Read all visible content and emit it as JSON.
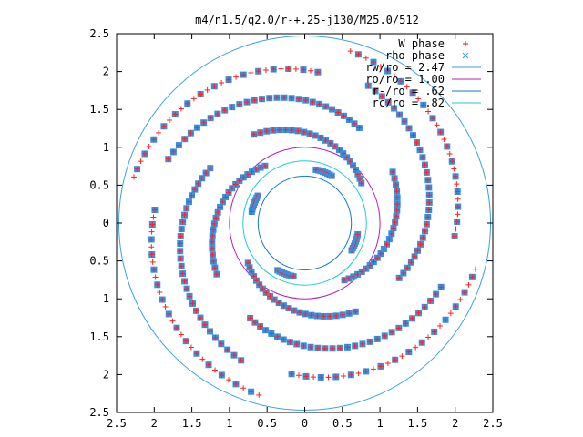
{
  "chart_data": {
    "type": "scatter",
    "title": "m4/n1.5/q2.0/r-+.25-j130/M25.0/512",
    "xlabel": "",
    "ylabel": "",
    "xlim": [
      -2.5,
      2.5
    ],
    "ylim": [
      -2.5,
      2.5
    ],
    "x_tick_labels": [
      "2.5",
      "2",
      "1.5",
      "1",
      "0.5",
      "0",
      "0.5",
      "1",
      "1.5",
      "2",
      "2.5"
    ],
    "y_tick_labels": [
      "2.5",
      "2",
      "1.5",
      "1",
      "0.5",
      "0",
      "0.5",
      "1",
      "1.5",
      "2",
      "2.5"
    ],
    "x_ticks": [
      -2.5,
      -2,
      -1.5,
      -1,
      -0.5,
      0,
      0.5,
      1,
      1.5,
      2,
      2.5
    ],
    "y_ticks": [
      2.5,
      2,
      1.5,
      1,
      0.5,
      0,
      -0.5,
      -1,
      -1.5,
      -2,
      -2.5
    ],
    "grid": false,
    "legend_position": "top-right",
    "legend": [
      {
        "label": "W phase",
        "symbol": "plus",
        "color": "#ff0000"
      },
      {
        "label": "rho phase",
        "symbol": "cross",
        "color": "#3a9ee8"
      },
      {
        "label": "rw/ro = 2.47",
        "symbol": "line",
        "color": "#3a9ee8"
      },
      {
        "label": "ro/ro = 1.00",
        "symbol": "line",
        "color": "#b020b0"
      },
      {
        "label": "r-/ro = .62",
        "symbol": "line",
        "color": "#1a78c8"
      },
      {
        "label": "rc/ro = .82",
        "symbol": "line",
        "color": "#20c8d8"
      }
    ],
    "circles": [
      {
        "name": "rw",
        "r": 2.47,
        "color": "#3a9ee8"
      },
      {
        "name": "ro",
        "r": 1.0,
        "color": "#b020b0"
      },
      {
        "name": "rminus",
        "r": 0.62,
        "color": "#1a78c8"
      },
      {
        "name": "rc",
        "r": 0.82,
        "color": "#20c8d8"
      }
    ],
    "spiral_arms": [
      {
        "name": "inner-arm-1",
        "r_start": 0.92,
        "r_end": 1.35,
        "theta_start_deg": 125,
        "theta_span_deg": 85,
        "points": 24
      },
      {
        "name": "inner-arm-2",
        "r_start": 0.92,
        "r_end": 1.35,
        "theta_start_deg": 35,
        "theta_span_deg": 85,
        "points": 24
      },
      {
        "name": "inner-arm-3",
        "r_start": 0.92,
        "r_end": 1.35,
        "theta_start_deg": -55,
        "theta_span_deg": 85,
        "points": 24
      },
      {
        "name": "inner-arm-4",
        "r_start": 0.92,
        "r_end": 1.35,
        "theta_start_deg": -145,
        "theta_span_deg": 85,
        "points": 24
      },
      {
        "name": "mid-arm-1",
        "r_start": 1.45,
        "r_end": 2.0,
        "theta_start_deg": 150,
        "theta_span_deg": 95,
        "points": 30
      },
      {
        "name": "mid-arm-2",
        "r_start": 1.45,
        "r_end": 2.0,
        "theta_start_deg": 60,
        "theta_span_deg": 95,
        "points": 30
      },
      {
        "name": "mid-arm-3",
        "r_start": 1.45,
        "r_end": 2.0,
        "theta_start_deg": -30,
        "theta_span_deg": 95,
        "points": 30
      },
      {
        "name": "mid-arm-4",
        "r_start": 1.45,
        "r_end": 2.0,
        "theta_start_deg": -120,
        "theta_span_deg": 95,
        "points": 30
      },
      {
        "name": "outer-arm-1",
        "r_start": 2.0,
        "r_end": 2.35,
        "theta_start_deg": 175,
        "theta_span_deg": 80,
        "points": 30
      },
      {
        "name": "outer-arm-2",
        "r_start": 2.0,
        "r_end": 2.35,
        "theta_start_deg": 85,
        "theta_span_deg": 80,
        "points": 30
      },
      {
        "name": "outer-arm-3",
        "r_start": 2.0,
        "r_end": 2.35,
        "theta_start_deg": -5,
        "theta_span_deg": 80,
        "points": 30
      },
      {
        "name": "outer-arm-4",
        "r_start": 2.0,
        "r_end": 2.35,
        "theta_start_deg": -95,
        "theta_span_deg": 80,
        "points": 30
      }
    ],
    "inner_blobs": [
      {
        "name": "blob-1",
        "r": 0.72,
        "theta_start_deg": 60,
        "theta_span_deg": 18
      },
      {
        "name": "blob-2",
        "r": 0.72,
        "theta_start_deg": 150,
        "theta_span_deg": 18
      },
      {
        "name": "blob-3",
        "r": 0.72,
        "theta_start_deg": 240,
        "theta_span_deg": 18
      },
      {
        "name": "blob-4",
        "r": 0.72,
        "theta_start_deg": 330,
        "theta_span_deg": 18
      }
    ]
  }
}
